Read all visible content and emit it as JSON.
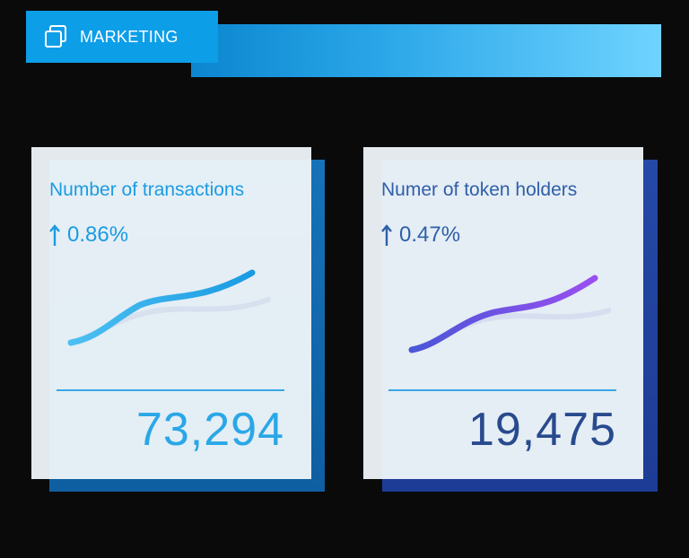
{
  "header": {
    "tab_label": "MARKETING",
    "icon": "stacked-windows-icon"
  },
  "cards": [
    {
      "title": "Number of transactions",
      "change": "0.86%",
      "change_icon": "arrow-up-icon",
      "value": "73,294",
      "accent": "#1b9be3"
    },
    {
      "title": "Numer of token holders",
      "change": "0.47%",
      "change_icon": "arrow-up-icon",
      "value": "19,475",
      "accent": "#7b4fe6"
    }
  ]
}
